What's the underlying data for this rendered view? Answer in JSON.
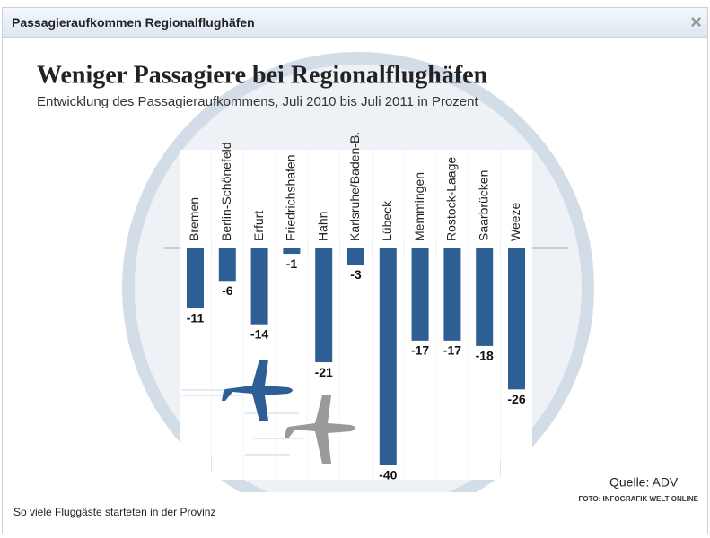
{
  "window_title": "Passagieraufkommen Regionalflughäfen",
  "close_label": "×",
  "credit": "FOTO: INFOGRAFIK WELT ONLINE",
  "caption": "So viele Fluggäste starteten in der Provinz",
  "chart_data": {
    "type": "bar",
    "title": "Weniger Passagiere bei Regionalflughäfen",
    "subtitle": "Entwicklung des Passagieraufkommens, Juli 2010 bis Juli 2011 in Prozent",
    "source": "Quelle: ADV",
    "categories": [
      "Bremen",
      "Berlin-Schönefeld",
      "Erfurt",
      "Friedrichshafen",
      "Hahn",
      "Karlsruhe/Baden-B.",
      "Lübeck",
      "Memmingen",
      "Rostock-Laage",
      "Saarbrücken",
      "Weeze"
    ],
    "values": [
      -11,
      -6,
      -14,
      -1,
      -21,
      -3,
      -40,
      -17,
      -17,
      -18,
      -26
    ],
    "color": "#2e5f94"
  }
}
